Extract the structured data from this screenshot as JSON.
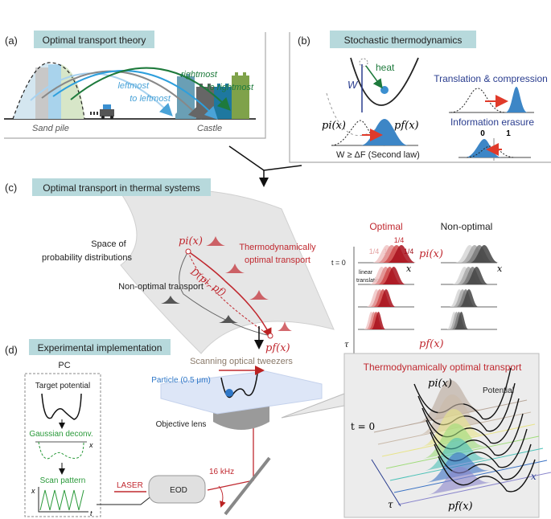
{
  "panel_a": {
    "label": "(a)",
    "title": "Optimal transport theory",
    "rightmost": [
      "rightmost",
      "to rightmost"
    ],
    "leftmost": [
      "leftmost",
      "to leftmost"
    ],
    "sand_pile": "Sand pile",
    "castle": "Castle"
  },
  "panel_b": {
    "label": "(b)",
    "title": "Stochastic thermodynamics",
    "heat": "heat",
    "work": "W",
    "pi": "pi(x)",
    "pf": "pf(x)",
    "second_law": "W ≥ ΔF (Second law)",
    "translation": "Translation & compression",
    "erasure": "Information erasure",
    "bit0": "0",
    "bit1": "1"
  },
  "panel_c": {
    "label": "(c)",
    "title": "Optimal transport in thermal systems",
    "space": [
      "Space of",
      "probability distributions"
    ],
    "thermo_optimal": [
      "Thermodynamically",
      "optimal transport"
    ],
    "non_optimal": "Non-optimal transport",
    "pi": "pi(x)",
    "pf": "pf(x)",
    "distance": "D(pi, pf)",
    "optimal_header": "Optimal",
    "nonoptimal_header": "Non-optimal",
    "quarter": "1/4",
    "t0": "t = 0",
    "tau": "τ",
    "x": "x",
    "linear": [
      "linear",
      "translation"
    ]
  },
  "panel_d": {
    "label": "(d)",
    "title": "Experimental implementation",
    "pc": "PC",
    "target_potential": "Target potential",
    "gaussian_deconv": "Gaussian deconv.",
    "scan_pattern": "Scan pattern",
    "x": "x",
    "t": "t",
    "laser": "LASER",
    "eod": "EOD",
    "freq": "16 kHz",
    "objective": "Objective lens",
    "tweezers": "Scanning optical tweezers",
    "particle": "Particle (0.5 μm)",
    "inset_title": "Thermodynamically optimal transport",
    "pi": "pi(x)",
    "pf": "pf(x)",
    "potential": "Potential",
    "t0": "t = 0",
    "tau": "τ"
  },
  "colors": {
    "title_box": "#b7d9dc",
    "red": "#c0282f",
    "blue": "#2f5fa8",
    "green": "#1e7a3c",
    "light_blue": "#4aa3d8"
  }
}
